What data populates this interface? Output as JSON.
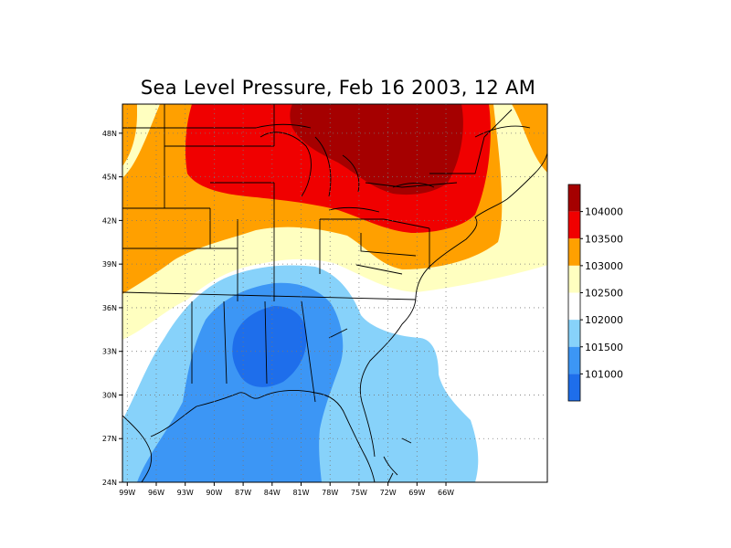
{
  "title": "Sea Level Pressure, Feb 16 2003, 12 AM",
  "map": {
    "lon_range": [
      -99.5,
      -55.5
    ],
    "lat_range": [
      24,
      50
    ],
    "lon_ticks": [
      "99W",
      "96W",
      "93W",
      "90W",
      "87W",
      "84W",
      "81W",
      "78W",
      "75W",
      "72W",
      "69W",
      "66W"
    ],
    "lat_ticks": [
      "24N",
      "27N",
      "30N",
      "33N",
      "36N",
      "39N",
      "42N",
      "45N",
      "48N"
    ],
    "gridlines": true
  },
  "colorbar": {
    "labels": [
      "104000",
      "103500",
      "103000",
      "102500",
      "102000",
      "101500",
      "101000"
    ],
    "colors": {
      "above_104000": "#a50000",
      "103500_104000": "#f00000",
      "103000_103500": "#ffa000",
      "102500_103000": "#ffffc0",
      "102000_102500": "#ffffff",
      "101500_102000": "#87d2fa",
      "101000_101500": "#3c96f5",
      "below_101000": "#1e6eeb"
    }
  }
}
